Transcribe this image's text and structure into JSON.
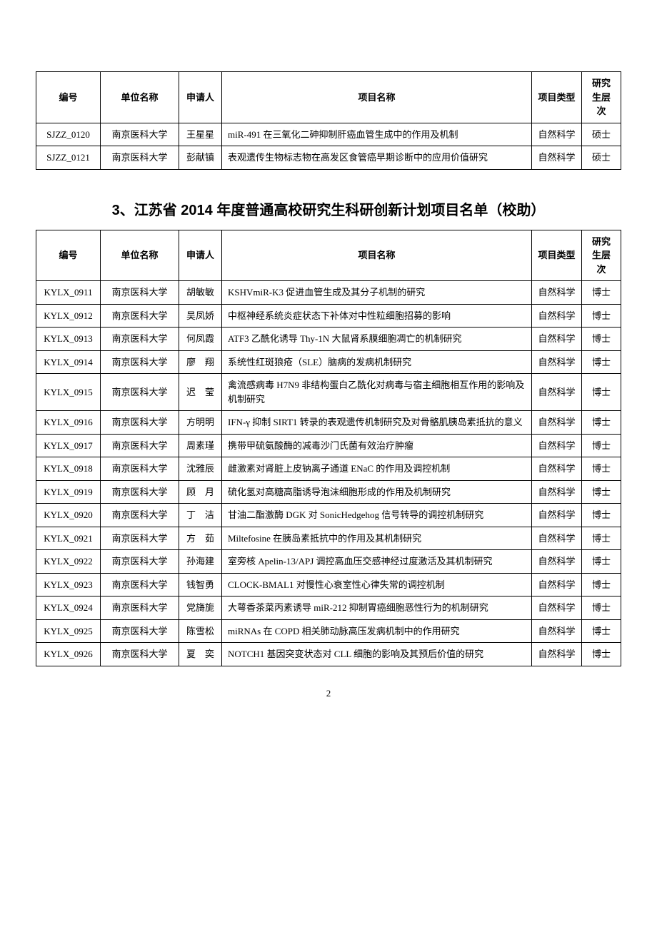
{
  "table1": {
    "headers": {
      "id": "编号",
      "unit": "单位名称",
      "applicant": "申请人",
      "project": "项目名称",
      "type": "项目类型",
      "level": "研究生层次"
    },
    "rows": [
      {
        "id": "SJZZ_0120",
        "unit": "南京医科大学",
        "applicant": "王星星",
        "project": "miR-491 在三氧化二砷抑制肝癌血管生成中的作用及机制",
        "type": "自然科学",
        "level": "硕士"
      },
      {
        "id": "SJZZ_0121",
        "unit": "南京医科大学",
        "applicant": "彭献镇",
        "project": "表观遗传生物标志物在高发区食管癌早期诊断中的应用价值研究",
        "type": "自然科学",
        "level": "硕士"
      }
    ]
  },
  "section_title": "3、江苏省 2014 年度普通高校研究生科研创新计划项目名单（校助）",
  "table2": {
    "headers": {
      "id": "编号",
      "unit": "单位名称",
      "applicant": "申请人",
      "project": "项目名称",
      "type": "项目类型",
      "level": "研究生层次"
    },
    "rows": [
      {
        "id": "KYLX_0911",
        "unit": "南京医科大学",
        "applicant": "胡敏敏",
        "project": "KSHVmiR-K3 促进血管生成及其分子机制的研究",
        "type": "自然科学",
        "level": "博士"
      },
      {
        "id": "KYLX_0912",
        "unit": "南京医科大学",
        "applicant": "吴凤娇",
        "project": "中枢神经系统炎症状态下补体对中性粒细胞招募的影响",
        "type": "自然科学",
        "level": "博士"
      },
      {
        "id": "KYLX_0913",
        "unit": "南京医科大学",
        "applicant": "何凤霞",
        "project": "ATF3 乙酰化诱导 Thy-1N 大鼠肾系膜细胞凋亡的机制研究",
        "type": "自然科学",
        "level": "博士"
      },
      {
        "id": "KYLX_0914",
        "unit": "南京医科大学",
        "applicant": "廖　翔",
        "project": "系统性红斑狼疮（SLE）脑病的发病机制研究",
        "type": "自然科学",
        "level": "博士"
      },
      {
        "id": "KYLX_0915",
        "unit": "南京医科大学",
        "applicant": "迟　莹",
        "project": "禽流感病毒 H7N9 非结构蛋白乙酰化对病毒与宿主细胞相互作用的影响及机制研究",
        "type": "自然科学",
        "level": "博士"
      },
      {
        "id": "KYLX_0916",
        "unit": "南京医科大学",
        "applicant": "方明明",
        "project": "IFN-γ 抑制 SIRT1 转录的表观遗传机制研究及对骨骼肌胰岛素抵抗的意义",
        "type": "自然科学",
        "level": "博士"
      },
      {
        "id": "KYLX_0917",
        "unit": "南京医科大学",
        "applicant": "周素瑾",
        "project": "携带甲硫氨酸酶的减毒沙门氏菌有效治疗肿瘤",
        "type": "自然科学",
        "level": "博士"
      },
      {
        "id": "KYLX_0918",
        "unit": "南京医科大学",
        "applicant": "沈雅辰",
        "project": "雌激素对肾脏上皮钠离子通道 ENaC 的作用及调控机制",
        "type": "自然科学",
        "level": "博士"
      },
      {
        "id": "KYLX_0919",
        "unit": "南京医科大学",
        "applicant": "顾　月",
        "project": "硫化氢对高糖高脂诱导泡沫细胞形成的作用及机制研究",
        "type": "自然科学",
        "level": "博士"
      },
      {
        "id": "KYLX_0920",
        "unit": "南京医科大学",
        "applicant": "丁　洁",
        "project": "甘油二酯激酶 DGK 对 SonicHedgehog 信号转导的调控机制研究",
        "type": "自然科学",
        "level": "博士"
      },
      {
        "id": "KYLX_0921",
        "unit": "南京医科大学",
        "applicant": "方　茹",
        "project": "Miltefosine 在胰岛素抵抗中的作用及其机制研究",
        "type": "自然科学",
        "level": "博士"
      },
      {
        "id": "KYLX_0922",
        "unit": "南京医科大学",
        "applicant": "孙海建",
        "project": "室旁核 Apelin-13/APJ 调控高血压交感神经过度激活及其机制研究",
        "type": "自然科学",
        "level": "博士"
      },
      {
        "id": "KYLX_0923",
        "unit": "南京医科大学",
        "applicant": "钱智勇",
        "project": "CLOCK-BMAL1 对慢性心衰室性心律失常的调控机制",
        "type": "自然科学",
        "level": "博士"
      },
      {
        "id": "KYLX_0924",
        "unit": "南京医科大学",
        "applicant": "党旖旎",
        "project": "大萼香茶菜丙素诱导 miR-212 抑制胃癌细胞恶性行为的机制研究",
        "type": "自然科学",
        "level": "博士"
      },
      {
        "id": "KYLX_0925",
        "unit": "南京医科大学",
        "applicant": "陈雪松",
        "project": "miRNAs 在 COPD 相关肺动脉高压发病机制中的作用研究",
        "type": "自然科学",
        "level": "博士"
      },
      {
        "id": "KYLX_0926",
        "unit": "南京医科大学",
        "applicant": "夏　奕",
        "project": "NOTCH1 基因突变状态对 CLL 细胞的影响及其预后价值的研究",
        "type": "自然科学",
        "level": "博士"
      }
    ]
  },
  "page_number": "2"
}
